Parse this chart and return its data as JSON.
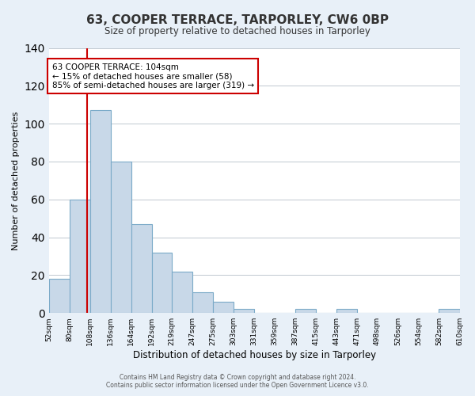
{
  "title": "63, COOPER TERRACE, TARPORLEY, CW6 0BP",
  "subtitle": "Size of property relative to detached houses in Tarporley",
  "xlabel": "Distribution of detached houses by size in Tarporley",
  "ylabel": "Number of detached properties",
  "bin_labels": [
    "52sqm",
    "80sqm",
    "108sqm",
    "136sqm",
    "164sqm",
    "192sqm",
    "219sqm",
    "247sqm",
    "275sqm",
    "303sqm",
    "331sqm",
    "359sqm",
    "387sqm",
    "415sqm",
    "443sqm",
    "471sqm",
    "498sqm",
    "526sqm",
    "554sqm",
    "582sqm",
    "610sqm"
  ],
  "bar_heights": [
    18,
    60,
    107,
    80,
    47,
    32,
    22,
    11,
    6,
    2,
    0,
    0,
    2,
    0,
    2,
    0,
    0,
    0,
    0,
    2
  ],
  "bar_color": "#c8d8e8",
  "bar_edge_color": "#7baac8",
  "property_line_x": 104,
  "property_line_color": "#cc0000",
  "ylim": [
    0,
    140
  ],
  "yticks": [
    0,
    20,
    40,
    60,
    80,
    100,
    120,
    140
  ],
  "annotation_text": "63 COOPER TERRACE: 104sqm\n← 15% of detached houses are smaller (58)\n85% of semi-detached houses are larger (319) →",
  "annotation_box_color": "#ffffff",
  "annotation_box_edge": "#cc0000",
  "footer_line1": "Contains HM Land Registry data © Crown copyright and database right 2024.",
  "footer_line2": "Contains public sector information licensed under the Open Government Licence v3.0.",
  "bg_color": "#e8f0f8",
  "plot_bg_color": "#ffffff",
  "grid_color": "#c0c8d0"
}
